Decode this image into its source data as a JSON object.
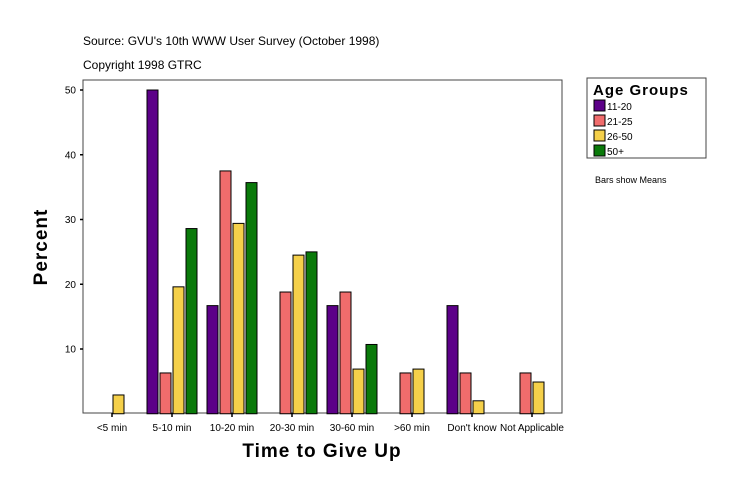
{
  "chart_data": {
    "type": "bar",
    "source": "Source: GVU's 10th WWW User Survey (October 1998)",
    "copyright": "Copyright 1998 GTRC",
    "xlabel": "Time to Give Up",
    "ylabel": "Percent",
    "ylim": [
      0,
      52
    ],
    "yticks": [
      10,
      20,
      30,
      40,
      50
    ],
    "grid": false,
    "legend_title": "Age Groups",
    "legend_position": "right",
    "note": "Bars show Means",
    "categories": [
      "<5 min",
      "5-10 min",
      "10-20 min",
      "20-30 min",
      "30-60 min",
      ">60 min",
      "Don't know",
      "Not Applicable"
    ],
    "series": [
      {
        "name": "11-20",
        "color": "#5c0088",
        "values": [
          null,
          50,
          16.7,
          null,
          16.7,
          null,
          16.7,
          null
        ]
      },
      {
        "name": "21-25",
        "color": "#f06c6c",
        "values": [
          null,
          6.3,
          37.5,
          18.8,
          18.8,
          6.3,
          6.3,
          6.3
        ]
      },
      {
        "name": "26-50",
        "color": "#f5d04a",
        "values": [
          2.9,
          19.6,
          29.4,
          24.5,
          6.9,
          6.9,
          2.0,
          4.9
        ]
      },
      {
        "name": "50+",
        "color": "#0a7a0a",
        "values": [
          null,
          28.6,
          35.7,
          25.0,
          10.7,
          null,
          null,
          null
        ]
      }
    ]
  }
}
